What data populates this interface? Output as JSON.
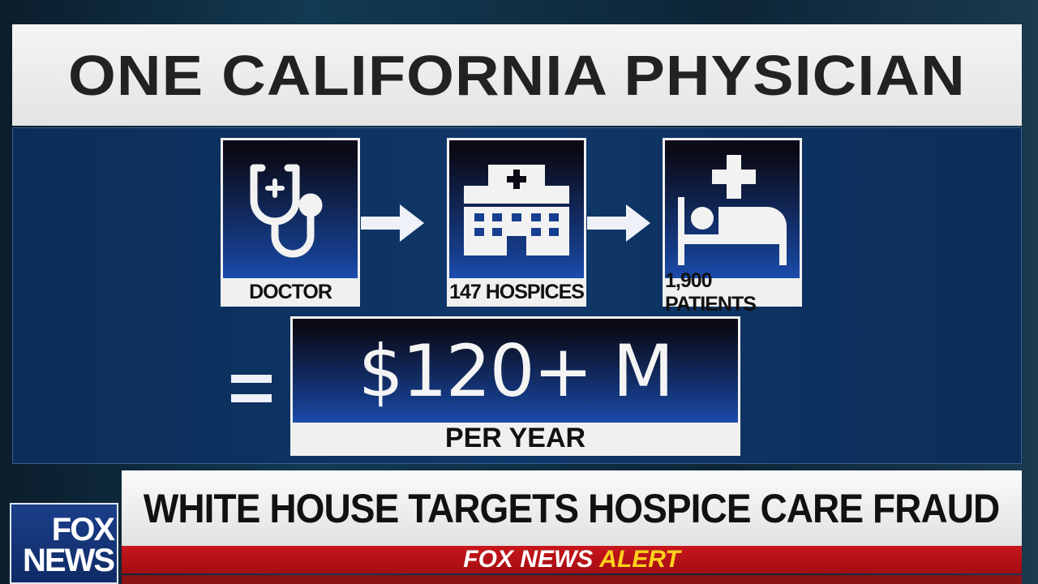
{
  "graphic": {
    "title": "ONE CALIFORNIA PHYSICIAN",
    "steps": [
      {
        "label": "DOCTOR",
        "icon": "stethoscope-icon"
      },
      {
        "label": "147 HOSPICES",
        "icon": "hospital-icon"
      },
      {
        "label": "1,900 PATIENTS",
        "icon": "hospital-bed-icon"
      }
    ],
    "equals": "=",
    "total": "$120+ M",
    "total_period": "PER YEAR"
  },
  "lower_third": {
    "headline": "WHITE HOUSE TARGETS HOSPICE CARE FRAUD",
    "alert_brand": "FOX NEWS",
    "alert_word": "ALERT"
  },
  "logo": {
    "line1": "FOX",
    "line2": "NEWS"
  },
  "colors": {
    "panel": "#0f3769",
    "alert_red": "#c8161c",
    "alert_yellow": "#ffd21e"
  }
}
